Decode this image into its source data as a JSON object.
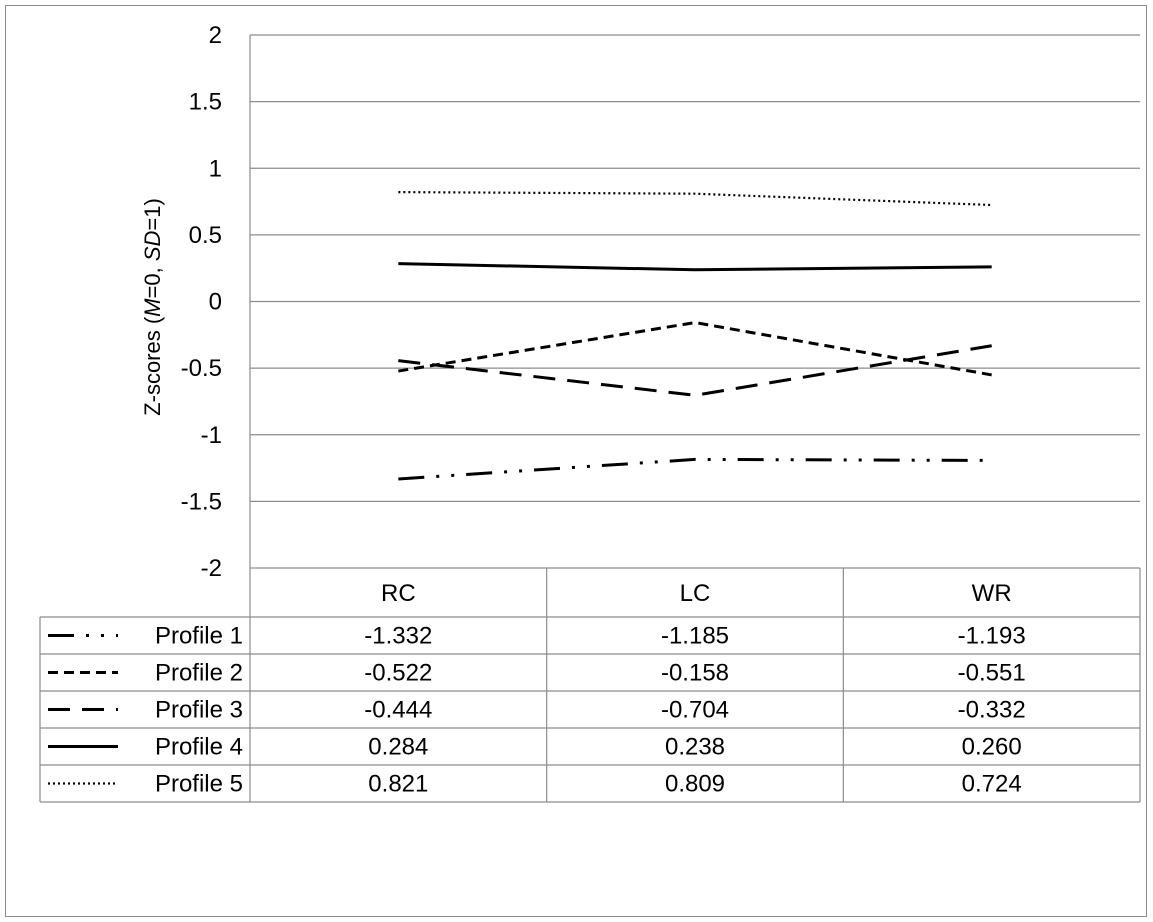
{
  "chart_data": {
    "type": "line",
    "categories": [
      "RC",
      "LC",
      "WR"
    ],
    "ylabel_parts": [
      "Z-scores (",
      "M",
      "=0, ",
      "SD",
      "=1)"
    ],
    "ylim": [
      -2,
      2
    ],
    "yticks": [
      "2",
      "1.5",
      "1",
      "0.5",
      "0",
      "-0.5",
      "-1",
      "-1.5",
      "-2"
    ],
    "ytick_values": [
      2,
      1.5,
      1,
      0.5,
      0,
      -0.5,
      -1,
      -1.5,
      -2
    ],
    "grid": true,
    "legend_placement": "data-table-below",
    "series": [
      {
        "name": "Profile 1",
        "style": "long-dash-dot-dot",
        "values": [
          -1.332,
          -1.185,
          -1.193
        ],
        "labels": [
          "-1.332",
          "-1.185",
          "-1.193"
        ]
      },
      {
        "name": "Profile 2",
        "style": "short-dash",
        "values": [
          -0.522,
          -0.158,
          -0.551
        ],
        "labels": [
          "-0.522",
          "-0.158",
          "-0.551"
        ]
      },
      {
        "name": "Profile 3",
        "style": "long-dash",
        "values": [
          -0.444,
          -0.704,
          -0.332
        ],
        "labels": [
          "-0.444",
          "-0.704",
          "-0.332"
        ]
      },
      {
        "name": "Profile 4",
        "style": "solid",
        "values": [
          0.284,
          0.238,
          0.26
        ],
        "labels": [
          "0.284",
          "0.238",
          "0.260"
        ]
      },
      {
        "name": "Profile 5",
        "style": "dotted",
        "values": [
          0.821,
          0.809,
          0.724
        ],
        "labels": [
          "0.821",
          "0.809",
          "0.724"
        ]
      }
    ],
    "colors": {
      "line": "#000000",
      "grid": "#8c8c8c"
    }
  }
}
